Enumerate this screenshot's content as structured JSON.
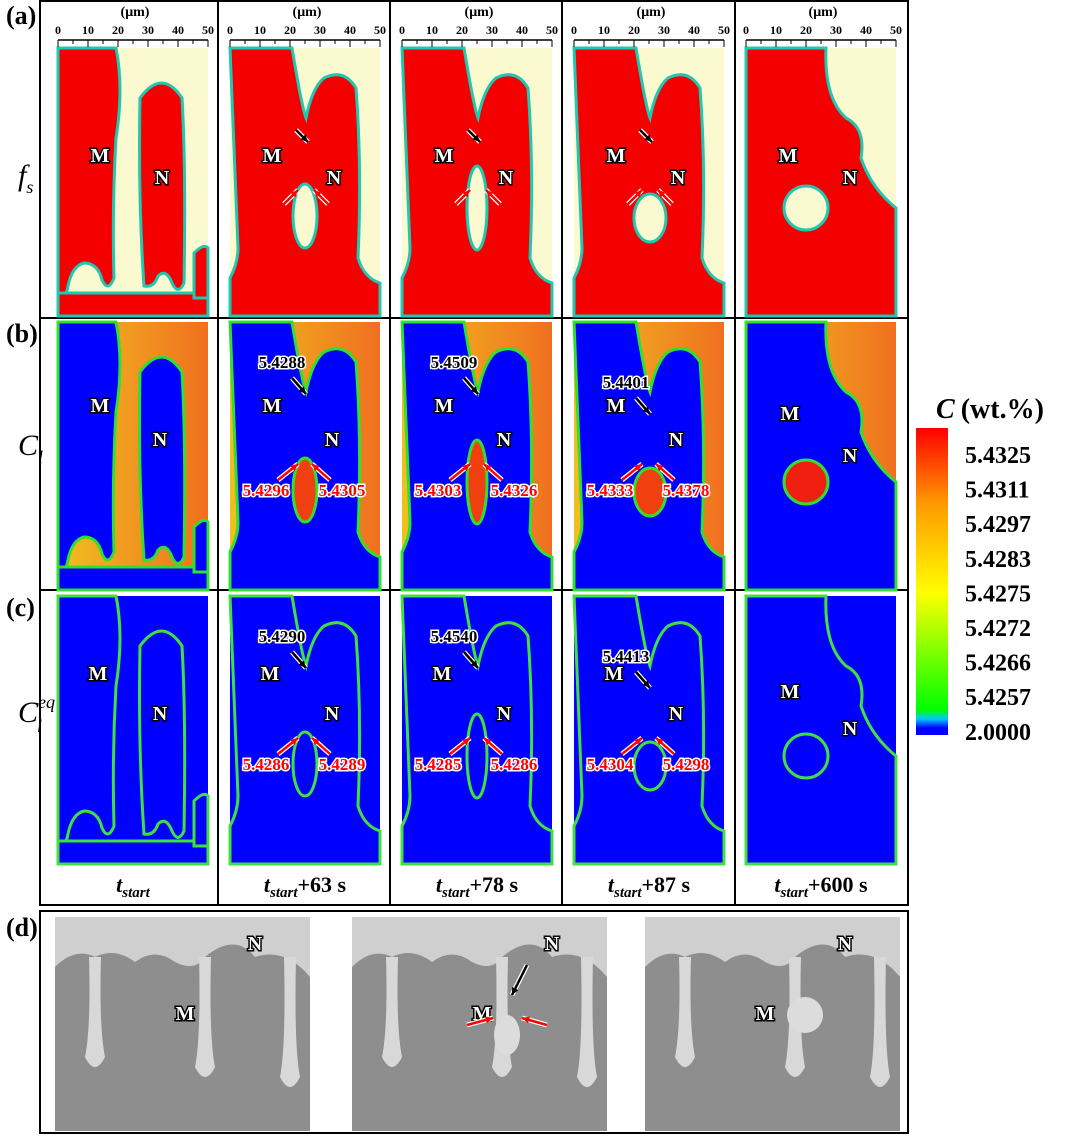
{
  "figure": {
    "panel_labels": [
      "(a)",
      "(b)",
      "(c)",
      "(d)"
    ],
    "row_labels": [
      {
        "symbol": "f",
        "sub": "s"
      },
      {
        "symbol": "C",
        "sub": "l"
      },
      {
        "symbol": "C",
        "sub": "l",
        "sup": "eq"
      }
    ],
    "axis": {
      "unit": "(μm)",
      "ticks": [
        0,
        10,
        20,
        30,
        40,
        50
      ]
    },
    "grain_labels": [
      "M",
      "N"
    ],
    "columns": [
      {
        "time": {
          "base": "t",
          "sub": "start"
        }
      },
      {
        "time": {
          "base": "t",
          "sub": "start",
          "suffix": "+63 s"
        },
        "b_labels": {
          "top": "5.4288",
          "left": "5.4296",
          "right": "5.4305"
        },
        "c_labels": {
          "top": "5.4290",
          "left": "5.4286",
          "right": "5.4289"
        }
      },
      {
        "time": {
          "base": "t",
          "sub": "start",
          "suffix": "+78 s"
        },
        "b_labels": {
          "top": "5.4509",
          "left": "5.4303",
          "right": "5.4326"
        },
        "c_labels": {
          "top": "5.4540",
          "left": "5.4285",
          "right": "5.4286"
        }
      },
      {
        "time": {
          "base": "t",
          "sub": "start",
          "suffix": "+87 s"
        },
        "b_labels": {
          "top": "5.4401",
          "left": "5.4333",
          "right": "5.4378"
        },
        "c_labels": {
          "top": "5.4413",
          "left": "5.4304",
          "right": "5.4298"
        }
      },
      {
        "time": {
          "base": "t",
          "sub": "start",
          "suffix": "+600 s"
        }
      }
    ],
    "colorbar": {
      "symbol": "C",
      "unit": "(wt.%)",
      "labels": [
        "5.4325",
        "5.4311",
        "5.4297",
        "5.4283",
        "5.4275",
        "5.4272",
        "5.4266",
        "5.4257",
        "2.0000"
      ]
    }
  }
}
